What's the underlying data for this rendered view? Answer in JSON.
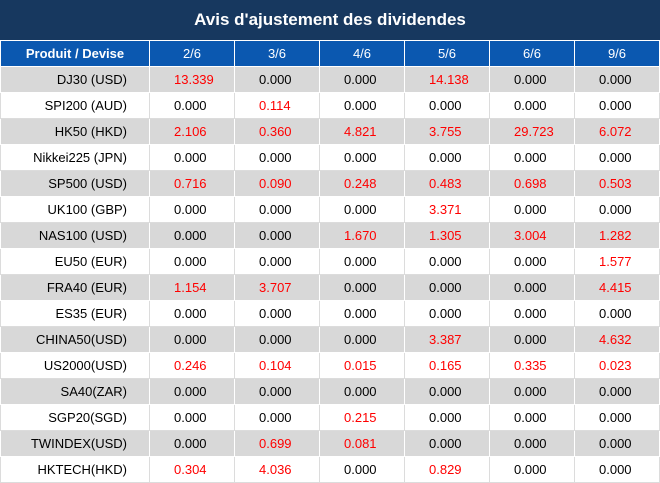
{
  "title": "Avis d'ajustement des dividendes",
  "headers": [
    "Produit / Devise",
    "2/6",
    "3/6",
    "4/6",
    "5/6",
    "6/6",
    "9/6"
  ],
  "colors": {
    "title_bg": "#17385f",
    "header_bg": "#0b58b0",
    "row_alt": "#d8d8d8",
    "nonzero": "#ff0000"
  },
  "rows": [
    {
      "product": "DJ30 (USD)",
      "values": [
        "13.339",
        "0.000",
        "0.000",
        "14.138",
        "0.000",
        "0.000"
      ]
    },
    {
      "product": "SPI200 (AUD)",
      "values": [
        "0.000",
        "0.114",
        "0.000",
        "0.000",
        "0.000",
        "0.000"
      ]
    },
    {
      "product": "HK50 (HKD)",
      "values": [
        "2.106",
        "0.360",
        "4.821",
        "3.755",
        "29.723",
        "6.072"
      ]
    },
    {
      "product": "Nikkei225 (JPN)",
      "values": [
        "0.000",
        "0.000",
        "0.000",
        "0.000",
        "0.000",
        "0.000"
      ]
    },
    {
      "product": "SP500 (USD)",
      "values": [
        "0.716",
        "0.090",
        "0.248",
        "0.483",
        "0.698",
        "0.503"
      ]
    },
    {
      "product": "UK100 (GBP)",
      "values": [
        "0.000",
        "0.000",
        "0.000",
        "3.371",
        "0.000",
        "0.000"
      ]
    },
    {
      "product": "NAS100 (USD)",
      "values": [
        "0.000",
        "0.000",
        "1.670",
        "1.305",
        "3.004",
        "1.282"
      ]
    },
    {
      "product": "EU50 (EUR)",
      "values": [
        "0.000",
        "0.000",
        "0.000",
        "0.000",
        "0.000",
        "1.577"
      ]
    },
    {
      "product": "FRA40 (EUR)",
      "values": [
        "1.154",
        "3.707",
        "0.000",
        "0.000",
        "0.000",
        "4.415"
      ]
    },
    {
      "product": "ES35 (EUR)",
      "values": [
        "0.000",
        "0.000",
        "0.000",
        "0.000",
        "0.000",
        "0.000"
      ]
    },
    {
      "product": "CHINA50(USD)",
      "values": [
        "0.000",
        "0.000",
        "0.000",
        "3.387",
        "0.000",
        "4.632"
      ]
    },
    {
      "product": "US2000(USD)",
      "values": [
        "0.246",
        "0.104",
        "0.015",
        "0.165",
        "0.335",
        "0.023"
      ]
    },
    {
      "product": "SA40(ZAR)",
      "values": [
        "0.000",
        "0.000",
        "0.000",
        "0.000",
        "0.000",
        "0.000"
      ]
    },
    {
      "product": "SGP20(SGD)",
      "values": [
        "0.000",
        "0.000",
        "0.215",
        "0.000",
        "0.000",
        "0.000"
      ]
    },
    {
      "product": "TWINDEX(USD)",
      "values": [
        "0.000",
        "0.699",
        "0.081",
        "0.000",
        "0.000",
        "0.000"
      ]
    },
    {
      "product": "HKTECH(HKD)",
      "values": [
        "0.304",
        "4.036",
        "0.000",
        "0.829",
        "0.000",
        "0.000"
      ]
    }
  ]
}
